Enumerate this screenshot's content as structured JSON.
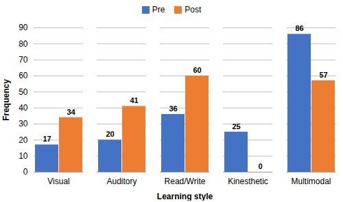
{
  "chart_data": {
    "type": "bar",
    "categories": [
      "Visual",
      "Auditory",
      "Read/Write",
      "Kinesthetic",
      "Multimodal"
    ],
    "series": [
      {
        "name": "Pre",
        "color": "#4472c4",
        "values": [
          17,
          20,
          36,
          25,
          86
        ]
      },
      {
        "name": "Post",
        "color": "#ed7d31",
        "values": [
          34,
          41,
          60,
          0,
          57
        ]
      }
    ],
    "xlabel": "Learning style",
    "ylabel": "Frequency",
    "ylim": [
      0,
      90
    ],
    "yticks": [
      0,
      10,
      20,
      30,
      40,
      50,
      60,
      70,
      80,
      90
    ],
    "grid": true,
    "legend": "top",
    "data_labels": true
  }
}
